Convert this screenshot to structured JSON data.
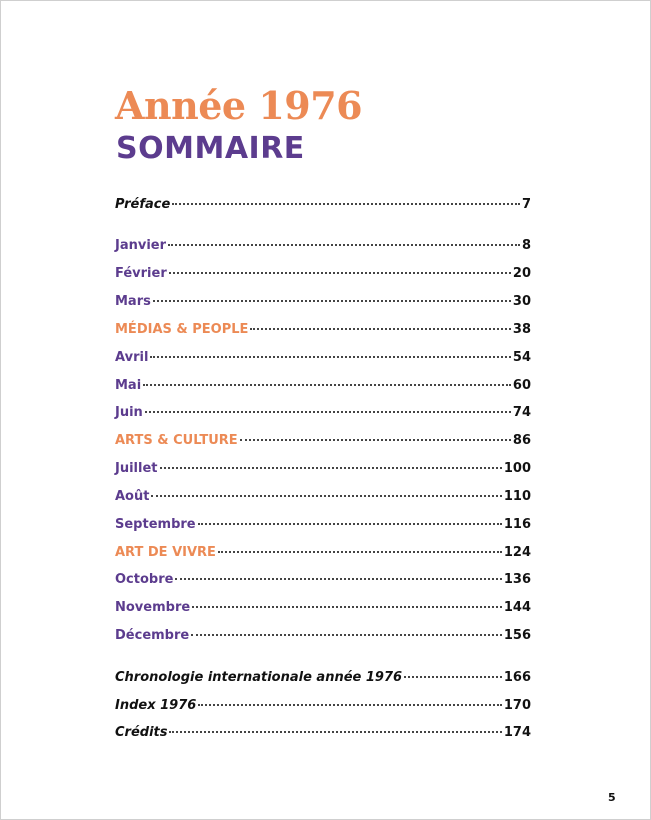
{
  "header": {
    "title": "Année 1976",
    "subtitle": "SOMMAIRE"
  },
  "toc": [
    {
      "label": "Préface",
      "page": 7
    },
    {
      "label": "Janvier",
      "page": 8
    },
    {
      "label": "Février",
      "page": 20
    },
    {
      "label": "Mars",
      "page": 30
    },
    {
      "label": "MÉDIAS & PEOPLE",
      "page": 38
    },
    {
      "label": "Avril",
      "page": 54
    },
    {
      "label": "Mai",
      "page": 60
    },
    {
      "label": "Juin",
      "page": 74
    },
    {
      "label": "ARTS & CULTURE",
      "page": 86
    },
    {
      "label": "Juillet",
      "page": 100
    },
    {
      "label": "Août",
      "page": 110
    },
    {
      "label": "Septembre",
      "page": 116
    },
    {
      "label": "ART DE VIVRE",
      "page": 124
    },
    {
      "label": "Octobre",
      "page": 136
    },
    {
      "label": "Novembre",
      "page": 144
    },
    {
      "label": "Décembre",
      "page": 156
    },
    {
      "label": "Chronologie internationale année 1976",
      "page": 166
    },
    {
      "label": "Index 1976",
      "page": 170
    },
    {
      "label": "Crédits",
      "page": 174
    }
  ],
  "footer": {
    "page_number": 5
  }
}
